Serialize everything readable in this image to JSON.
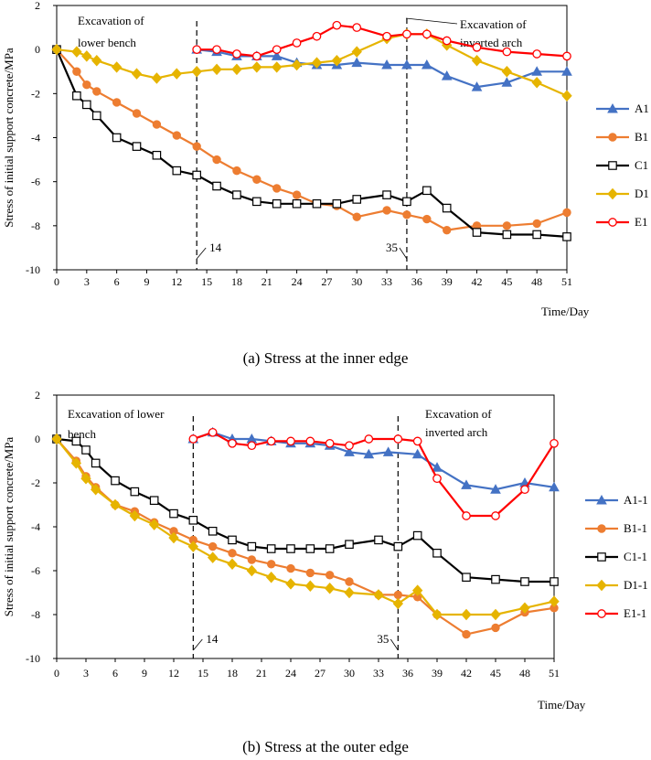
{
  "chart_data": [
    {
      "type": "line",
      "caption": "(a) Stress at the inner edge",
      "ylabel": "Stress of initial support concrete/MPa",
      "xlabel": "Time/Day",
      "xlim": [
        0,
        51
      ],
      "ylim": [
        -10,
        2
      ],
      "xticks": [
        0,
        3,
        6,
        9,
        12,
        15,
        18,
        21,
        24,
        27,
        30,
        33,
        36,
        39,
        42,
        45,
        48,
        51
      ],
      "yticks": [
        -10,
        -8,
        -6,
        -4,
        -2,
        0,
        2
      ],
      "legend_position": "right",
      "annotations": [
        {
          "text": "Excavation of lower bench",
          "lines": [
            "Excavation of",
            "lower bench"
          ],
          "x": 14
        },
        {
          "text": "Excavation of inverted arch",
          "lines": [
            "Excavation of",
            "inverted arch"
          ],
          "x": 35
        }
      ],
      "vlines": [
        {
          "x": 14,
          "label": "14"
        },
        {
          "x": 35,
          "label": "35"
        }
      ],
      "series": [
        {
          "name": "A1",
          "color": "#4472C4",
          "marker": "triangle",
          "x": [
            14,
            16,
            18,
            20,
            22,
            24,
            26,
            28,
            30,
            33,
            35,
            37,
            39,
            42,
            45,
            48,
            51
          ],
          "y": [
            0,
            -0.1,
            -0.3,
            -0.3,
            -0.3,
            -0.6,
            -0.7,
            -0.7,
            -0.6,
            -0.7,
            -0.7,
            -0.7,
            -1.2,
            -1.7,
            -1.5,
            -1.0,
            -1.0
          ]
        },
        {
          "name": "B1",
          "color": "#ED7D31",
          "marker": "circle",
          "x": [
            0,
            2,
            3,
            4,
            6,
            8,
            10,
            12,
            14,
            16,
            18,
            20,
            22,
            24,
            26,
            28,
            30,
            33,
            35,
            37,
            39,
            42,
            45,
            48,
            51
          ],
          "y": [
            0,
            -1.0,
            -1.6,
            -1.9,
            -2.4,
            -2.9,
            -3.4,
            -3.9,
            -4.4,
            -5.0,
            -5.5,
            -5.9,
            -6.3,
            -6.6,
            -7.0,
            -7.1,
            -7.6,
            -7.3,
            -7.5,
            -7.7,
            -8.2,
            -8.0,
            -8.0,
            -7.9,
            -7.4
          ]
        },
        {
          "name": "C1",
          "color": "#000000",
          "marker": "square",
          "x": [
            0,
            2,
            3,
            4,
            6,
            8,
            10,
            12,
            14,
            16,
            18,
            20,
            22,
            24,
            26,
            28,
            30,
            33,
            35,
            37,
            39,
            42,
            45,
            48,
            51
          ],
          "y": [
            0,
            -2.1,
            -2.5,
            -3.0,
            -4.0,
            -4.4,
            -4.8,
            -5.5,
            -5.7,
            -6.2,
            -6.6,
            -6.9,
            -7.0,
            -7.0,
            -7.0,
            -7.0,
            -6.8,
            -6.6,
            -6.9,
            -6.4,
            -7.2,
            -8.3,
            -8.4,
            -8.4,
            -8.5
          ]
        },
        {
          "name": "D1",
          "color": "#E6B400",
          "marker": "diamond",
          "x": [
            0,
            2,
            3,
            4,
            6,
            8,
            10,
            12,
            14,
            16,
            18,
            20,
            22,
            24,
            26,
            28,
            30,
            33,
            35,
            37,
            39,
            42,
            45,
            48,
            51
          ],
          "y": [
            0,
            -0.1,
            -0.3,
            -0.5,
            -0.8,
            -1.1,
            -1.3,
            -1.1,
            -1.0,
            -0.9,
            -0.9,
            -0.8,
            -0.8,
            -0.7,
            -0.6,
            -0.5,
            -0.1,
            0.5,
            0.7,
            0.7,
            0.2,
            -0.5,
            -1.0,
            -1.5,
            -2.1
          ]
        },
        {
          "name": "E1",
          "color": "#FF0000",
          "marker": "circle-open",
          "x": [
            14,
            16,
            18,
            20,
            22,
            24,
            26,
            28,
            30,
            33,
            35,
            37,
            39,
            42,
            45,
            48,
            51
          ],
          "y": [
            0,
            0,
            -0.2,
            -0.3,
            0,
            0.3,
            0.6,
            1.1,
            1.0,
            0.6,
            0.7,
            0.7,
            0.4,
            0.1,
            -0.1,
            -0.2,
            -0.3
          ]
        }
      ]
    },
    {
      "type": "line",
      "caption": "(b) Stress at the outer edge",
      "ylabel": "Stress of initial support concrete/MPa",
      "xlabel": "Time/Day",
      "xlim": [
        0,
        51
      ],
      "ylim": [
        -10,
        2
      ],
      "xticks": [
        0,
        3,
        6,
        9,
        12,
        15,
        18,
        21,
        24,
        27,
        30,
        33,
        36,
        39,
        42,
        45,
        48,
        51
      ],
      "yticks": [
        -10,
        -8,
        -6,
        -4,
        -2,
        0,
        2
      ],
      "legend_position": "right",
      "annotations": [
        {
          "text": "Excavation of lower bench",
          "lines": [
            "Excavation of lower",
            "bench"
          ],
          "x": 14
        },
        {
          "text": "Excavation of inverted arch",
          "lines": [
            "Excavation of",
            "inverted arch"
          ],
          "x": 35
        }
      ],
      "vlines": [
        {
          "x": 14,
          "label": "14"
        },
        {
          "x": 35,
          "label": "35"
        }
      ],
      "series": [
        {
          "name": "A1-1",
          "color": "#4472C4",
          "marker": "triangle",
          "x": [
            14,
            16,
            18,
            20,
            22,
            24,
            26,
            28,
            30,
            32,
            34,
            37,
            39,
            42,
            45,
            48,
            51
          ],
          "y": [
            0,
            0.3,
            0,
            0,
            -0.1,
            -0.2,
            -0.2,
            -0.3,
            -0.6,
            -0.7,
            -0.6,
            -0.7,
            -1.3,
            -2.1,
            -2.3,
            -2.0,
            -2.2
          ]
        },
        {
          "name": "B1-1",
          "color": "#ED7D31",
          "marker": "circle",
          "x": [
            0,
            2,
            3,
            4,
            6,
            8,
            10,
            12,
            14,
            16,
            18,
            20,
            22,
            24,
            26,
            28,
            30,
            33,
            35,
            37,
            39,
            42,
            45,
            48,
            51
          ],
          "y": [
            0,
            -1.0,
            -1.7,
            -2.2,
            -3.0,
            -3.3,
            -3.8,
            -4.2,
            -4.6,
            -4.9,
            -5.2,
            -5.5,
            -5.7,
            -5.9,
            -6.1,
            -6.2,
            -6.5,
            -7.1,
            -7.1,
            -7.2,
            -8.0,
            -8.9,
            -8.6,
            -7.9,
            -7.7
          ]
        },
        {
          "name": "C1-1",
          "color": "#000000",
          "marker": "square",
          "x": [
            0,
            2,
            3,
            4,
            6,
            8,
            10,
            12,
            14,
            16,
            18,
            20,
            22,
            24,
            26,
            28,
            30,
            33,
            35,
            37,
            39,
            42,
            45,
            48,
            51
          ],
          "y": [
            0,
            -0.1,
            -0.5,
            -1.1,
            -1.9,
            -2.4,
            -2.8,
            -3.4,
            -3.7,
            -4.2,
            -4.6,
            -4.9,
            -5.0,
            -5.0,
            -5.0,
            -5.0,
            -4.8,
            -4.6,
            -4.9,
            -4.4,
            -5.2,
            -6.3,
            -6.4,
            -6.5,
            -6.5
          ]
        },
        {
          "name": "D1-1",
          "color": "#E6B400",
          "marker": "diamond",
          "x": [
            0,
            2,
            3,
            4,
            6,
            8,
            10,
            12,
            14,
            16,
            18,
            20,
            22,
            24,
            26,
            28,
            30,
            33,
            35,
            37,
            39,
            42,
            45,
            48,
            51
          ],
          "y": [
            0,
            -1.1,
            -1.8,
            -2.3,
            -3.0,
            -3.5,
            -3.9,
            -4.5,
            -4.9,
            -5.4,
            -5.7,
            -6.0,
            -6.3,
            -6.6,
            -6.7,
            -6.8,
            -7.0,
            -7.1,
            -7.5,
            -6.9,
            -8.0,
            -8.0,
            -8.0,
            -7.7,
            -7.4
          ]
        },
        {
          "name": "E1-1",
          "color": "#FF0000",
          "marker": "circle-open",
          "x": [
            14,
            16,
            18,
            20,
            22,
            24,
            26,
            28,
            30,
            32,
            35,
            37,
            39,
            42,
            45,
            48,
            51
          ],
          "y": [
            0,
            0.3,
            -0.2,
            -0.3,
            -0.1,
            -0.1,
            -0.1,
            -0.2,
            -0.3,
            0,
            0,
            -0.1,
            -1.8,
            -3.5,
            -3.5,
            -2.3,
            -0.2
          ]
        }
      ]
    }
  ]
}
